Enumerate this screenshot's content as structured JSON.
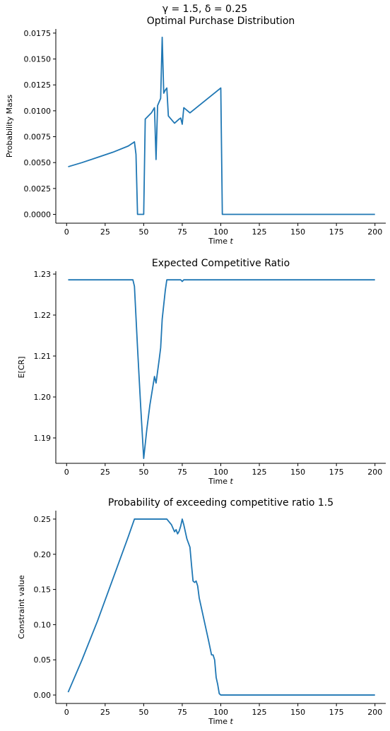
{
  "suptitle": "γ = 1.5, δ = 0.25",
  "colors": {
    "series": "#1f77b4"
  },
  "chart_data": [
    {
      "type": "line",
      "title": "Optimal Purchase Distribution",
      "xlabel": "Time t",
      "ylabel": "Probability Mass",
      "xlim": [
        -7,
        207
      ],
      "ylim": [
        -0.00085,
        0.0179
      ],
      "xticks": [
        0,
        25,
        50,
        75,
        100,
        125,
        150,
        175,
        200
      ],
      "xtick_labels": [
        "0",
        "25",
        "50",
        "75",
        "100",
        "125",
        "150",
        "175",
        "200"
      ],
      "yticks": [
        0,
        0.0025,
        0.005,
        0.0075,
        0.01,
        0.0125,
        0.015,
        0.0175
      ],
      "ytick_labels": [
        "0.0000",
        "0.0025",
        "0.0050",
        "0.0075",
        "0.0100",
        "0.0125",
        "0.0150",
        "0.0175"
      ],
      "series": [
        {
          "x": [
            1,
            10,
            20,
            30,
            40,
            44,
            45,
            46,
            50,
            51,
            55,
            57,
            58,
            59,
            61,
            62,
            63,
            64,
            65,
            66,
            70,
            73,
            74,
            75,
            76,
            80,
            90,
            100,
            101,
            200
          ],
          "y": [
            0.0046,
            0.005,
            0.0055,
            0.006,
            0.0066,
            0.007,
            0.0058,
            0.0,
            0.0,
            0.0092,
            0.0098,
            0.0103,
            0.0053,
            0.0105,
            0.0112,
            0.0171,
            0.0117,
            0.012,
            0.0122,
            0.0095,
            0.0088,
            0.0092,
            0.0093,
            0.0087,
            0.0103,
            0.0098,
            0.011,
            0.0122,
            0.0,
            0.0
          ]
        }
      ]
    },
    {
      "type": "line",
      "title": "Expected Competitive Ratio",
      "xlabel": "Time t",
      "ylabel": "E[CR]",
      "xlim": [
        -7,
        207
      ],
      "ylim": [
        1.1838,
        1.2307
      ],
      "xticks": [
        0,
        25,
        50,
        75,
        100,
        125,
        150,
        175,
        200
      ],
      "xtick_labels": [
        "0",
        "25",
        "50",
        "75",
        "100",
        "125",
        "150",
        "175",
        "200"
      ],
      "yticks": [
        1.19,
        1.2,
        1.21,
        1.22,
        1.23
      ],
      "ytick_labels": [
        "1.19",
        "1.20",
        "1.21",
        "1.22",
        "1.23"
      ],
      "series": [
        {
          "x": [
            1,
            43,
            44,
            46,
            48,
            50,
            52,
            54,
            57,
            58,
            60,
            61,
            62,
            64,
            65,
            73,
            74,
            75,
            76,
            200
          ],
          "y": [
            1.2286,
            1.2286,
            1.227,
            1.212,
            1.198,
            1.185,
            1.192,
            1.198,
            1.205,
            1.2034,
            1.209,
            1.212,
            1.219,
            1.226,
            1.2286,
            1.2286,
            1.2286,
            1.2282,
            1.2286,
            1.2286
          ]
        }
      ]
    },
    {
      "type": "line",
      "title": "Probability of exceeding competitive ratio 1.5",
      "xlabel": "Time t",
      "ylabel": "Constraint value",
      "xlim": [
        -7,
        207
      ],
      "ylim": [
        -0.012,
        0.262
      ],
      "xticks": [
        0,
        25,
        50,
        75,
        100,
        125,
        150,
        175,
        200
      ],
      "xtick_labels": [
        "0",
        "25",
        "50",
        "75",
        "100",
        "125",
        "150",
        "175",
        "200"
      ],
      "yticks": [
        0,
        0.05,
        0.1,
        0.15,
        0.2,
        0.25
      ],
      "ytick_labels": [
        "0.00",
        "0.05",
        "0.10",
        "0.15",
        "0.20",
        "0.25"
      ],
      "series": [
        {
          "x": [
            1,
            10,
            20,
            30,
            40,
            44,
            50,
            55,
            60,
            65,
            68,
            70,
            71,
            72,
            73,
            74,
            75,
            76,
            78,
            80,
            81,
            82,
            83,
            84,
            85,
            86,
            88,
            90,
            92,
            94,
            95,
            96,
            97,
            98,
            99,
            100,
            200
          ],
          "y": [
            0.004,
            0.05,
            0.105,
            0.165,
            0.225,
            0.25,
            0.25,
            0.25,
            0.25,
            0.25,
            0.242,
            0.232,
            0.235,
            0.229,
            0.233,
            0.24,
            0.25,
            0.242,
            0.222,
            0.21,
            0.185,
            0.162,
            0.16,
            0.162,
            0.155,
            0.138,
            0.118,
            0.098,
            0.078,
            0.057,
            0.057,
            0.05,
            0.025,
            0.015,
            0.002,
            0.0,
            0.0
          ]
        }
      ]
    }
  ]
}
